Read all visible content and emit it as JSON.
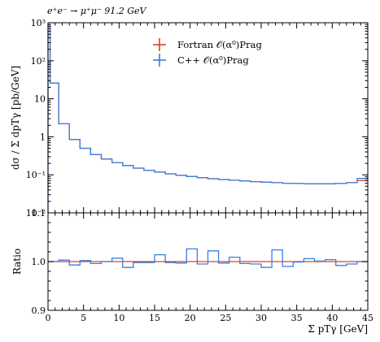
{
  "chart_data": [
    {
      "type": "line",
      "panel": "main",
      "title": "e⁺e⁻ → μ⁺μ⁻ 91.2 GeV",
      "xlabel": "",
      "ylabel": "dσ / Σ dpTγ [pb/GeV]",
      "xlim": [
        0,
        45
      ],
      "ylim": [
        0.01,
        1000
      ],
      "yscale": "log",
      "xticks": [
        "0",
        "5",
        "10",
        "15",
        "20",
        "25",
        "30",
        "35",
        "40",
        "45"
      ],
      "yticks": [
        "10⁻²",
        "10⁻¹",
        "1",
        "10",
        "10²",
        "10³"
      ],
      "ytick_values": [
        0.01,
        0.1,
        1,
        10,
        100,
        1000
      ],
      "legend_position": "top-center",
      "bin_edges": [
        0,
        0.3,
        1.5,
        3,
        4.5,
        6,
        7.5,
        9,
        10.5,
        12,
        13.5,
        15,
        16.5,
        18,
        19.5,
        21,
        22.5,
        24,
        25.5,
        27,
        28.5,
        30,
        31.5,
        33,
        34.5,
        36,
        37.5,
        39,
        40.5,
        42,
        43.5,
        45
      ],
      "series": [
        {
          "name": "Fortran 𝒪(α⁰)Prag",
          "color": "#e8401c",
          "values": [
            900,
            26,
            2.2,
            0.85,
            0.5,
            0.34,
            0.26,
            0.21,
            0.175,
            0.15,
            0.132,
            0.118,
            0.106,
            0.097,
            0.09,
            0.084,
            0.079,
            0.075,
            0.072,
            0.069,
            0.066,
            0.064,
            0.062,
            0.06,
            0.059,
            0.058,
            0.058,
            0.058,
            0.059,
            0.062,
            0.07
          ]
        },
        {
          "name": "C++ 𝒪(α⁰)Prag",
          "color": "#3b7fe0",
          "values": [
            900,
            26,
            2.2,
            0.85,
            0.5,
            0.34,
            0.26,
            0.21,
            0.175,
            0.15,
            0.132,
            0.118,
            0.106,
            0.097,
            0.09,
            0.084,
            0.079,
            0.075,
            0.072,
            0.069,
            0.066,
            0.064,
            0.062,
            0.06,
            0.059,
            0.058,
            0.058,
            0.058,
            0.059,
            0.062,
            0.08
          ]
        }
      ]
    },
    {
      "type": "line",
      "panel": "ratio",
      "xlabel": "Σ pTγ [GeV]",
      "ylabel": "Ratio",
      "xlim": [
        0,
        45
      ],
      "ylim": [
        0.9,
        1.1
      ],
      "xticks": [
        "0",
        "5",
        "10",
        "15",
        "20",
        "25",
        "30",
        "35",
        "40",
        "45"
      ],
      "yticks": [
        "0.9",
        "1.0",
        "1.1"
      ],
      "ytick_values": [
        0.9,
        1.0,
        1.1
      ],
      "bin_edges": [
        0,
        1.5,
        3,
        4.5,
        6,
        7.5,
        9,
        10.5,
        12,
        13.5,
        15,
        16.5,
        18,
        19.5,
        21,
        22.5,
        24,
        25.5,
        27,
        28.5,
        30,
        31.5,
        33,
        34.5,
        36,
        37.5,
        39,
        40.5,
        42,
        43.5,
        45
      ],
      "series": [
        {
          "name": "Fortran 𝒪(α⁰)Prag",
          "color": "#e8401c",
          "values": [
            1,
            1,
            1,
            1,
            1,
            1,
            1,
            1,
            1,
            1,
            1,
            1,
            1,
            1,
            1,
            1,
            1,
            1,
            1,
            1,
            1,
            1,
            1,
            1,
            1,
            1,
            1,
            1,
            1,
            1
          ]
        },
        {
          "name": "C++ 𝒪(α⁰)Prag",
          "color": "#3b7fe0",
          "values": [
            1.0,
            1.003,
            0.993,
            1.002,
            0.996,
            1.0,
            1.007,
            0.988,
            0.998,
            0.998,
            1.014,
            0.998,
            0.997,
            1.026,
            0.995,
            1.022,
            0.997,
            1.009,
            0.996,
            0.995,
            0.988,
            1.024,
            0.99,
            0.999,
            1.006,
            1.001,
            1.004,
            0.992,
            0.995,
            1.0
          ]
        }
      ]
    }
  ]
}
